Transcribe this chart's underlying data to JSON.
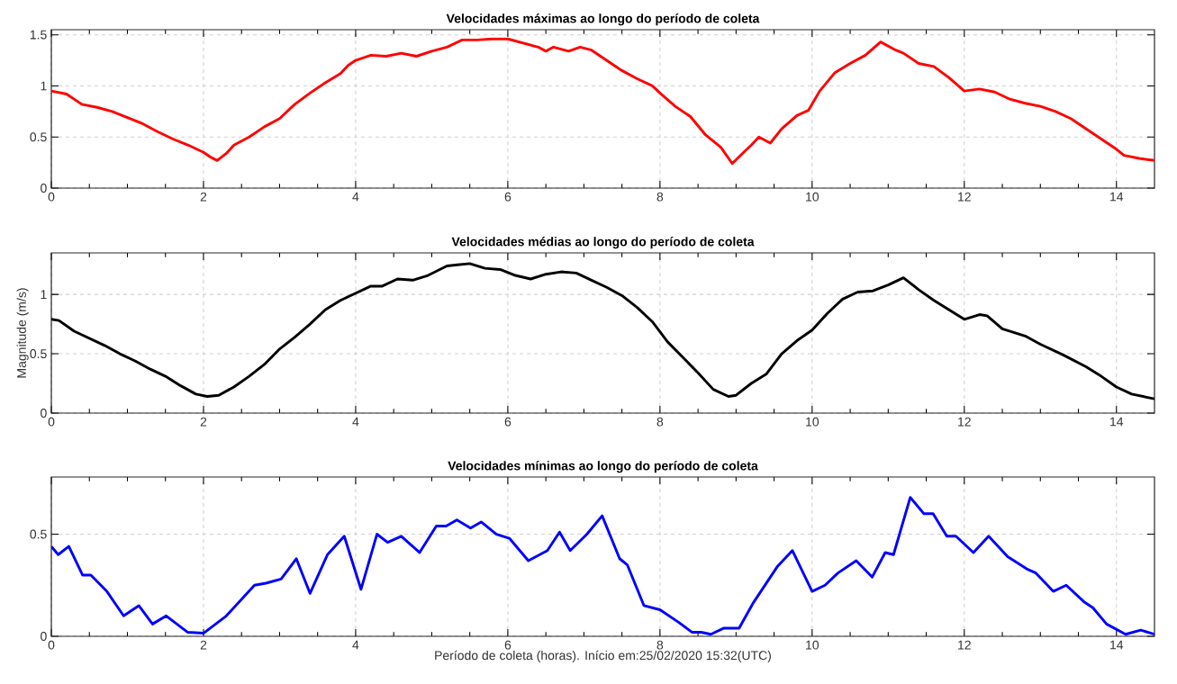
{
  "chart_data": [
    {
      "type": "line",
      "title": "Velocidades máximas ao longo do período de coleta",
      "xlim": [
        0,
        14.5
      ],
      "xticks": [
        0,
        2,
        4,
        6,
        8,
        10,
        12,
        14
      ],
      "ylim": [
        0,
        1.55
      ],
      "yticks": [
        0,
        0.5,
        1,
        1.5
      ],
      "grid": true,
      "line_style": "solid",
      "series": [
        {
          "color": "#ff0000",
          "x": [
            0,
            0.2,
            0.4,
            0.6,
            0.8,
            1.0,
            1.2,
            1.4,
            1.6,
            1.8,
            2.0,
            2.1,
            2.18,
            2.3,
            2.4,
            2.6,
            2.8,
            3.0,
            3.2,
            3.4,
            3.6,
            3.8,
            3.9,
            4.0,
            4.2,
            4.4,
            4.6,
            4.8,
            5.0,
            5.2,
            5.4,
            5.6,
            5.8,
            6.0,
            6.2,
            6.4,
            6.5,
            6.6,
            6.8,
            6.95,
            7.1,
            7.3,
            7.5,
            7.7,
            7.9,
            8.0,
            8.2,
            8.4,
            8.6,
            8.8,
            8.95,
            9.1,
            9.2,
            9.3,
            9.45,
            9.6,
            9.8,
            9.95,
            10.1,
            10.3,
            10.5,
            10.7,
            10.9,
            11.1,
            11.2,
            11.4,
            11.6,
            11.8,
            12.0,
            12.2,
            12.4,
            12.6,
            12.8,
            13.0,
            13.2,
            13.4,
            13.6,
            13.8,
            14.0,
            14.1,
            14.3,
            14.5
          ],
          "values": [
            0.95,
            0.92,
            0.82,
            0.79,
            0.75,
            0.69,
            0.63,
            0.55,
            0.48,
            0.42,
            0.35,
            0.3,
            0.27,
            0.34,
            0.42,
            0.5,
            0.6,
            0.68,
            0.82,
            0.93,
            1.03,
            1.12,
            1.2,
            1.25,
            1.3,
            1.29,
            1.32,
            1.29,
            1.34,
            1.38,
            1.45,
            1.45,
            1.46,
            1.46,
            1.42,
            1.38,
            1.34,
            1.38,
            1.34,
            1.38,
            1.35,
            1.25,
            1.15,
            1.07,
            1.0,
            0.93,
            0.8,
            0.7,
            0.52,
            0.4,
            0.24,
            0.35,
            0.42,
            0.5,
            0.44,
            0.58,
            0.71,
            0.76,
            0.95,
            1.13,
            1.22,
            1.3,
            1.43,
            1.35,
            1.32,
            1.22,
            1.19,
            1.08,
            0.95,
            0.97,
            0.94,
            0.87,
            0.83,
            0.8,
            0.75,
            0.68,
            0.58,
            0.48,
            0.38,
            0.32,
            0.29,
            0.27
          ]
        }
      ]
    },
    {
      "type": "line",
      "title": "Velocidades médias ao longo do período de coleta",
      "ylabel": "Magnitude (m/s)",
      "xlim": [
        0,
        14.5
      ],
      "xticks": [
        0,
        2,
        4,
        6,
        8,
        10,
        12,
        14
      ],
      "ylim": [
        0,
        1.35
      ],
      "yticks": [
        0,
        0.5,
        1
      ],
      "grid": true,
      "line_style": "solid",
      "series": [
        {
          "color": "#000000",
          "x": [
            0,
            0.1,
            0.3,
            0.5,
            0.7,
            0.9,
            1.1,
            1.3,
            1.5,
            1.7,
            1.9,
            2.05,
            2.2,
            2.4,
            2.6,
            2.8,
            3.0,
            3.2,
            3.4,
            3.6,
            3.8,
            4.0,
            4.2,
            4.35,
            4.55,
            4.75,
            4.95,
            5.2,
            5.5,
            5.7,
            5.9,
            6.1,
            6.3,
            6.5,
            6.7,
            6.9,
            7.1,
            7.3,
            7.5,
            7.7,
            7.9,
            8.1,
            8.3,
            8.5,
            8.7,
            8.9,
            9.0,
            9.2,
            9.4,
            9.6,
            9.8,
            10.0,
            10.2,
            10.4,
            10.6,
            10.8,
            11.0,
            11.2,
            11.4,
            11.6,
            11.8,
            12.0,
            12.2,
            12.3,
            12.5,
            12.8,
            13.0,
            13.3,
            13.6,
            13.8,
            14.0,
            14.2,
            14.5
          ],
          "values": [
            0.79,
            0.78,
            0.69,
            0.63,
            0.57,
            0.5,
            0.44,
            0.37,
            0.31,
            0.23,
            0.16,
            0.14,
            0.15,
            0.22,
            0.31,
            0.41,
            0.54,
            0.64,
            0.75,
            0.87,
            0.95,
            1.01,
            1.07,
            1.07,
            1.13,
            1.12,
            1.16,
            1.24,
            1.26,
            1.22,
            1.21,
            1.16,
            1.13,
            1.17,
            1.19,
            1.18,
            1.12,
            1.06,
            0.99,
            0.89,
            0.77,
            0.6,
            0.47,
            0.34,
            0.2,
            0.14,
            0.15,
            0.25,
            0.33,
            0.5,
            0.61,
            0.7,
            0.84,
            0.96,
            1.02,
            1.03,
            1.08,
            1.14,
            1.04,
            0.95,
            0.87,
            0.79,
            0.83,
            0.82,
            0.71,
            0.65,
            0.58,
            0.49,
            0.39,
            0.31,
            0.22,
            0.16,
            0.12
          ]
        }
      ]
    },
    {
      "type": "line",
      "title": "Velocidades mínimas ao longo do período de coleta",
      "xlabel": "Período de coleta (horas). Início em:25/02/2020 15:32(UTC)",
      "xlim": [
        0,
        14.5
      ],
      "xticks": [
        0,
        2,
        4,
        6,
        8,
        10,
        12,
        14
      ],
      "ylim": [
        0,
        0.78
      ],
      "yticks": [
        0,
        0.5
      ],
      "grid": true,
      "line_style": "solid",
      "series": [
        {
          "color": "#0000ff",
          "x": [
            0,
            0.09,
            0.23,
            0.41,
            0.52,
            0.73,
            0.95,
            1.15,
            1.33,
            1.51,
            1.79,
            2.0,
            2.3,
            2.67,
            2.82,
            3.02,
            3.22,
            3.4,
            3.63,
            3.85,
            4.07,
            4.28,
            4.42,
            4.6,
            4.84,
            5.06,
            5.19,
            5.33,
            5.51,
            5.65,
            5.85,
            6.02,
            6.27,
            6.52,
            6.68,
            6.82,
            7.04,
            7.24,
            7.47,
            7.57,
            7.79,
            8.0,
            8.24,
            8.42,
            8.54,
            8.67,
            8.84,
            9.04,
            9.22,
            9.54,
            9.74,
            10.0,
            10.17,
            10.34,
            10.58,
            10.79,
            10.96,
            11.07,
            11.29,
            11.47,
            11.59,
            11.77,
            11.89,
            12.12,
            12.32,
            12.57,
            12.82,
            12.94,
            13.17,
            13.34,
            13.57,
            13.69,
            13.87,
            14.12,
            14.32,
            14.5
          ],
          "values": [
            0.44,
            0.4,
            0.44,
            0.3,
            0.3,
            0.22,
            0.1,
            0.15,
            0.06,
            0.1,
            0.02,
            0.015,
            0.1,
            0.25,
            0.26,
            0.28,
            0.38,
            0.21,
            0.4,
            0.49,
            0.23,
            0.5,
            0.46,
            0.49,
            0.41,
            0.54,
            0.54,
            0.57,
            0.53,
            0.56,
            0.5,
            0.48,
            0.37,
            0.42,
            0.51,
            0.42,
            0.5,
            0.59,
            0.38,
            0.35,
            0.15,
            0.13,
            0.07,
            0.02,
            0.02,
            0.01,
            0.04,
            0.04,
            0.16,
            0.34,
            0.42,
            0.22,
            0.25,
            0.31,
            0.37,
            0.29,
            0.41,
            0.4,
            0.68,
            0.6,
            0.6,
            0.49,
            0.49,
            0.41,
            0.49,
            0.39,
            0.33,
            0.31,
            0.22,
            0.25,
            0.17,
            0.14,
            0.06,
            0.01,
            0.03,
            0.01
          ]
        }
      ]
    }
  ]
}
